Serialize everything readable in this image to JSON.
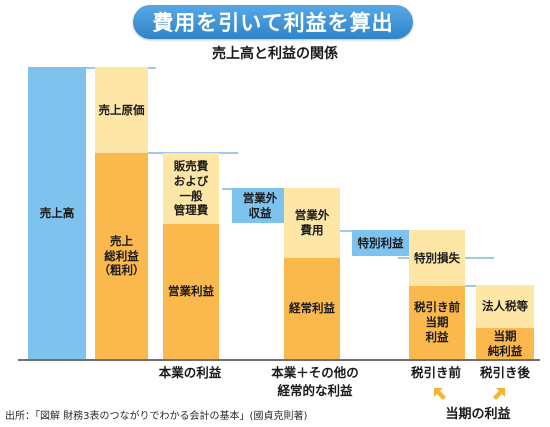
{
  "title": "費用を引いて利益を算出",
  "subtitle": "売上高と利益の関係",
  "blocks": {
    "sales": "売上高",
    "cost_of_sales": "売上原価",
    "gross_profit": "売上\n総利益\n（粗利）",
    "sga": "販売費\nおよび\n一般\n管理費",
    "operating_profit": "営業利益",
    "non_op_income": "営業外\n収益",
    "non_op_expense": "営業外\n費用",
    "ordinary_profit": "経常利益",
    "extraordinary_gain": "特別利益",
    "extraordinary_loss": "特別損失",
    "pretax_profit": "税引き前\n当期\n利益",
    "corporate_tax": "法人税等",
    "net_profit": "当期\n純利益"
  },
  "categories": {
    "core": "本業の利益",
    "core_plus": "本業＋その他の\n経常的な利益",
    "pretax": "税引き前",
    "aftertax": "税引き後"
  },
  "period_profit_label": "当期の利益",
  "source": "出所：「図解 財務3表のつながりでわかる会計の基本」(國貞克則著)",
  "colors": {
    "title_blue": "#2e84c8",
    "revenue_blue": "#7ec3ee",
    "expense_cream": "#fde6a6",
    "profit_orange": "#fbb84d",
    "arrow": "#f5b233"
  }
}
